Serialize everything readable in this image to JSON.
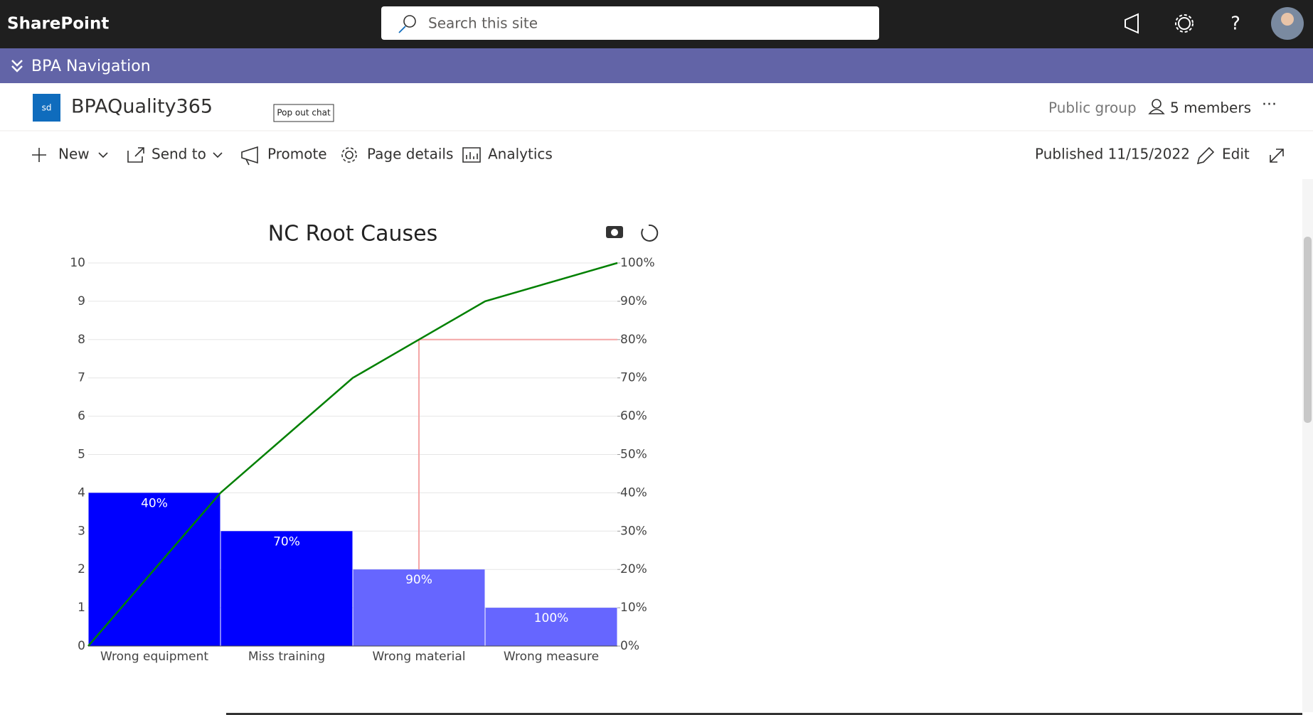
{
  "header": {
    "brand": "SharePoint",
    "search_placeholder": "Search this site"
  },
  "navigation": {
    "title": "BPA Navigation"
  },
  "site": {
    "icon": "sd",
    "name": "BPAQuality365",
    "popout": "Pop out chat",
    "privacy": "Public group",
    "members": "5 members"
  },
  "toolbar": {
    "items": [
      "New",
      "Send to",
      "Promote",
      "Page details",
      "Analytics"
    ],
    "published": "Published 11/15/2022",
    "edit": "Edit"
  },
  "chart_data": {
    "type": "pareto",
    "title": "NC Root Causes",
    "categories": [
      "Wrong equipment",
      "Miss training",
      "Wrong material",
      "Wrong measure"
    ],
    "series": [
      {
        "values": [
          4,
          3,
          2,
          1
        ],
        "colors": [
          "#0000ff",
          "#0000ff",
          "#6666ff",
          "#6666ff"
        ]
      },
      {
        "values": [
          40,
          70,
          90,
          100
        ],
        "value_labels": [
          "40%",
          "70%",
          "90%",
          "100%"
        ],
        "color": "#008000",
        "axis": "y2"
      }
    ],
    "threshold": 80,
    "threshold_color": "#f4a6a6",
    "ylim": [
      0,
      10
    ],
    "yticks": [
      0,
      1,
      2,
      3,
      4,
      5,
      6,
      7,
      8,
      9,
      10
    ],
    "y2lim": [
      0,
      100
    ],
    "y2ticks": [
      {
        "value": 0,
        "label": "0%"
      },
      {
        "value": 10,
        "label": "10%"
      },
      {
        "value": 20,
        "label": "20%"
      },
      {
        "value": 30,
        "label": "30%"
      },
      {
        "value": 40,
        "label": "40%"
      },
      {
        "value": 50,
        "label": "50%"
      },
      {
        "value": 60,
        "label": "60%"
      },
      {
        "value": 70,
        "label": "70%"
      },
      {
        "value": 80,
        "label": "80%"
      },
      {
        "value": 90,
        "label": "90%"
      },
      {
        "value": 100,
        "label": "100%"
      }
    ],
    "grid": true
  }
}
